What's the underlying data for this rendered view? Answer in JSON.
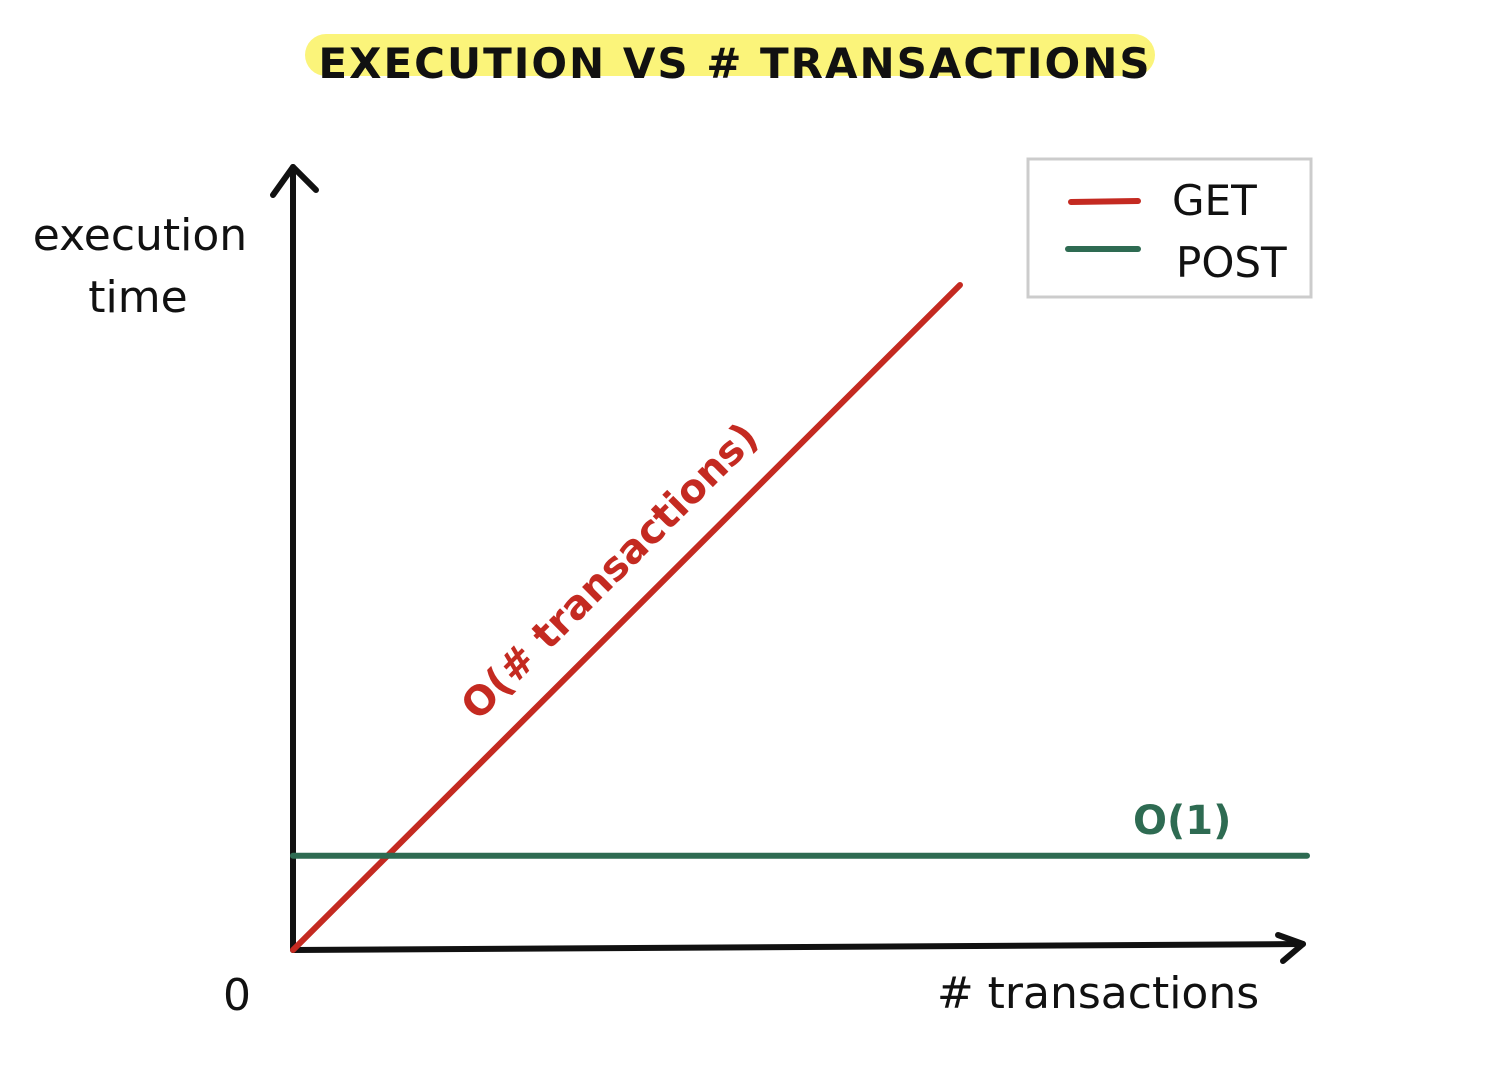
{
  "chart_data": {
    "type": "line",
    "title": "EXECUTION VS # TRANSACTIONS",
    "xlabel": "# transactions",
    "ylabel": [
      "execution",
      "time"
    ],
    "origin_label": "0",
    "legend_position": "top-right",
    "grid": false,
    "series": [
      {
        "name": "GET",
        "color": "#c42a21",
        "x": [
          0,
          1
        ],
        "y": [
          0,
          1
        ],
        "annotation": "O(# transactions)"
      },
      {
        "name": "POST",
        "color": "#2e6b52",
        "x": [
          0,
          1
        ],
        "y": [
          0.15,
          0.15
        ],
        "annotation": "O(1)"
      }
    ]
  },
  "colors": {
    "title_highlight": "#fbf47a",
    "axis": "#111111",
    "legend_border": "#cccccc"
  }
}
